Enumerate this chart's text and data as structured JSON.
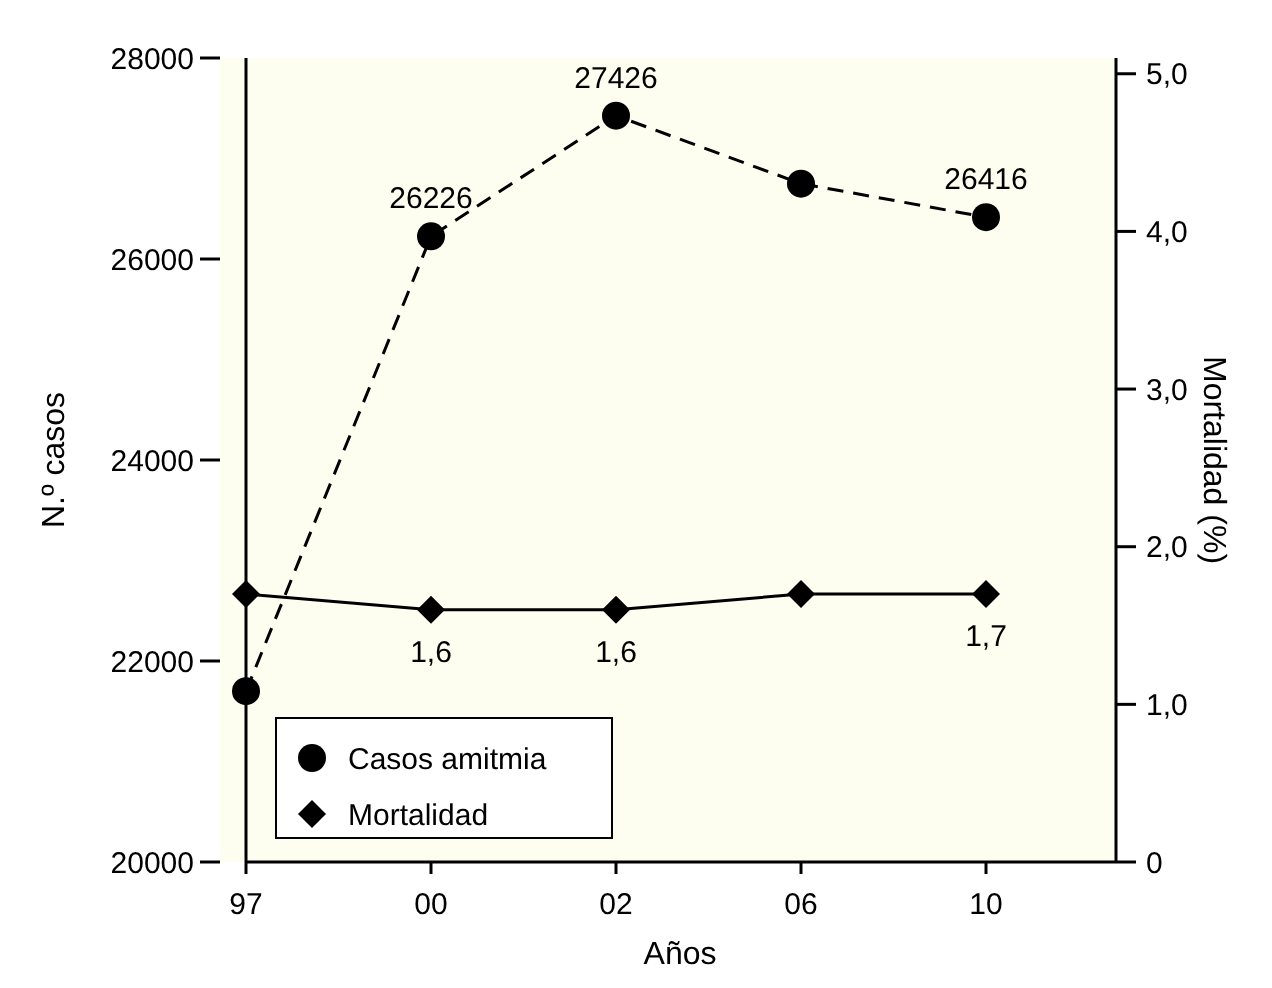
{
  "chart_data": {
    "type": "line",
    "xlabel": "Años",
    "ylabel": "N.º casos",
    "y2label": "Mortalidad (%)",
    "categories": [
      "97",
      "00",
      "02",
      "06",
      "10"
    ],
    "ylim": [
      20000,
      28000
    ],
    "yticks": [
      20000,
      22000,
      24000,
      26000,
      28000
    ],
    "y2lim": [
      0,
      5.1
    ],
    "y2ticks": [
      {
        "value": 0,
        "label": "0"
      },
      {
        "value": 1,
        "label": "1,0"
      },
      {
        "value": 2,
        "label": "2,0"
      },
      {
        "value": 3,
        "label": "3,0"
      },
      {
        "value": 4,
        "label": "4,0"
      },
      {
        "value": 5,
        "label": "5,0"
      }
    ],
    "series": [
      {
        "name": "Casos amitmia",
        "color": "#000000",
        "marker": "circle",
        "line_style": "dashed",
        "values": [
          21700,
          26226,
          27426,
          26750,
          26416
        ],
        "value_labels": [
          null,
          "26226",
          "27426",
          null,
          "26416"
        ]
      },
      {
        "name": "Mortalidad",
        "color": "#000000",
        "marker": "diamond",
        "line_style": "solid",
        "axis": "y2",
        "values": [
          1.7,
          1.6,
          1.6,
          1.7,
          1.7
        ],
        "value_labels": [
          null,
          "1,6",
          "1,6",
          null,
          "1,7"
        ]
      }
    ],
    "legend": "bottom left"
  }
}
